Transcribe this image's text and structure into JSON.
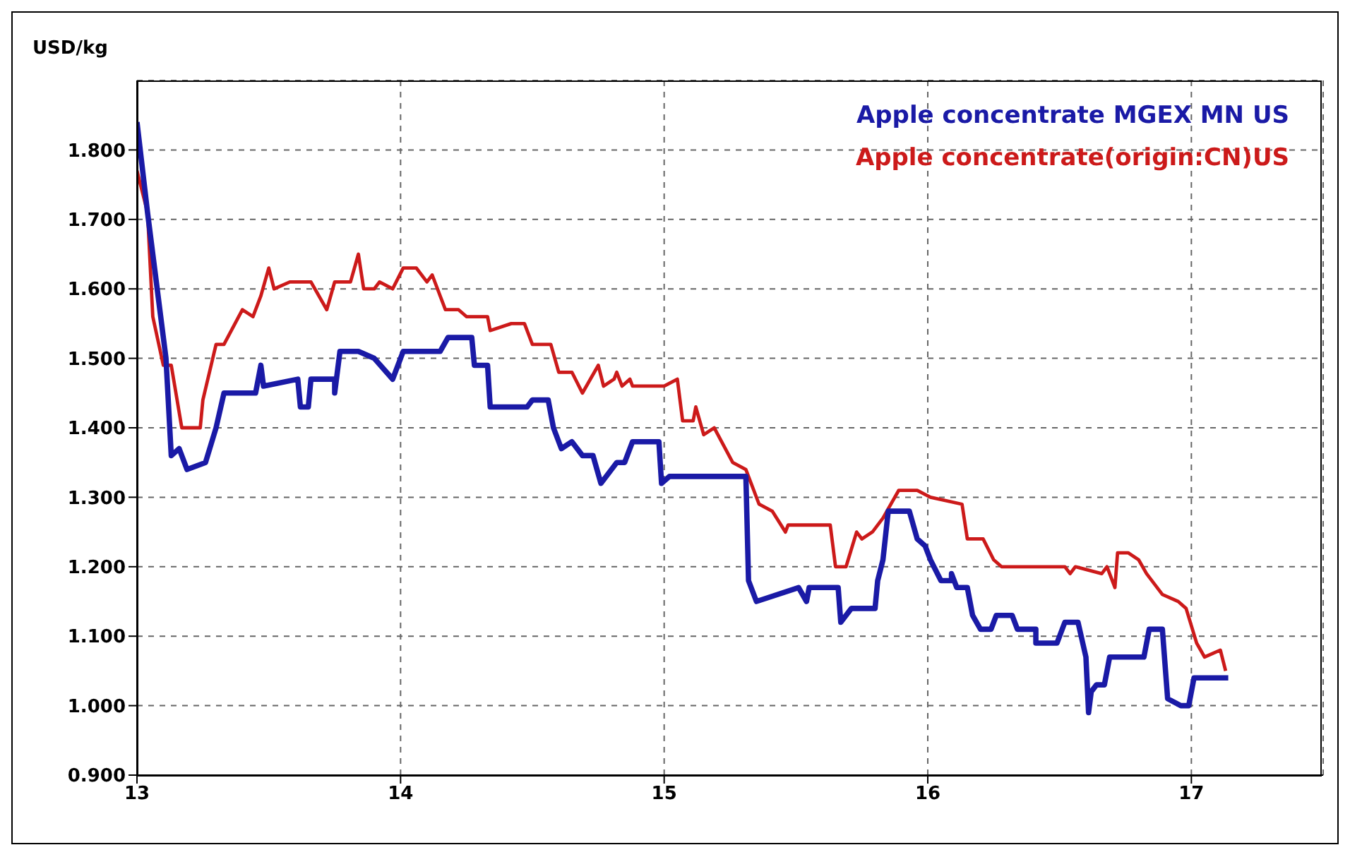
{
  "chart_data": {
    "type": "line",
    "ylabel": "USD/kg",
    "xlim": [
      13,
      17.5
    ],
    "xticks": [
      13,
      14,
      15,
      16,
      17
    ],
    "ylim": [
      0.9,
      1.9
    ],
    "yticks": [
      {
        "value": 0.9,
        "label": "0.900"
      },
      {
        "value": 1.0,
        "label": "1.000"
      },
      {
        "value": 1.1,
        "label": "1.100"
      },
      {
        "value": 1.2,
        "label": "1.200"
      },
      {
        "value": 1.3,
        "label": "1.300"
      },
      {
        "value": 1.4,
        "label": "1.400"
      },
      {
        "value": 1.5,
        "label": "1.500"
      },
      {
        "value": 1.6,
        "label": "1.600"
      },
      {
        "value": 1.7,
        "label": "1.700"
      },
      {
        "value": 1.8,
        "label": "1.800"
      }
    ],
    "grid": true,
    "legend": "top right",
    "marker": "none",
    "line_style": "solid",
    "series": [
      {
        "name": "Apple concentrate MGEX MN US",
        "color": "#1a1aa6",
        "x": [
          13.0,
          13.04,
          13.11,
          13.13,
          13.16,
          13.19,
          13.26,
          13.3,
          13.33,
          13.45,
          13.47,
          13.48,
          13.61,
          13.62,
          13.65,
          13.66,
          13.75,
          13.75,
          13.77,
          13.84,
          13.9,
          13.97,
          14.01,
          14.15,
          14.18,
          14.27,
          14.28,
          14.33,
          14.34,
          14.48,
          14.5,
          14.56,
          14.58,
          14.61,
          14.65,
          14.69,
          14.73,
          14.76,
          14.82,
          14.85,
          14.88,
          14.98,
          14.99,
          15.02,
          15.2,
          15.22,
          15.31,
          15.32,
          15.35,
          15.51,
          15.54,
          15.55,
          15.66,
          15.67,
          15.71,
          15.8,
          15.81,
          15.83,
          15.85,
          15.93,
          15.96,
          15.99,
          16.01,
          16.05,
          16.09,
          16.09,
          16.11,
          16.15,
          16.17,
          16.2,
          16.24,
          16.26,
          16.32,
          16.34,
          16.41,
          16.41,
          16.49,
          16.52,
          16.57,
          16.6,
          16.61,
          16.62,
          16.64,
          16.67,
          16.69,
          16.82,
          16.84,
          16.89,
          16.91,
          16.96,
          16.99,
          17.01,
          17.14
        ],
        "values": [
          1.84,
          1.71,
          1.5,
          1.36,
          1.37,
          1.34,
          1.35,
          1.4,
          1.45,
          1.45,
          1.49,
          1.46,
          1.47,
          1.43,
          1.43,
          1.47,
          1.47,
          1.45,
          1.51,
          1.51,
          1.5,
          1.47,
          1.51,
          1.51,
          1.53,
          1.53,
          1.49,
          1.49,
          1.43,
          1.43,
          1.44,
          1.44,
          1.4,
          1.37,
          1.38,
          1.36,
          1.36,
          1.32,
          1.35,
          1.35,
          1.38,
          1.38,
          1.32,
          1.33,
          1.33,
          1.33,
          1.33,
          1.18,
          1.15,
          1.17,
          1.15,
          1.17,
          1.17,
          1.12,
          1.14,
          1.14,
          1.18,
          1.21,
          1.28,
          1.28,
          1.24,
          1.23,
          1.21,
          1.18,
          1.18,
          1.19,
          1.17,
          1.17,
          1.13,
          1.11,
          1.11,
          1.13,
          1.13,
          1.11,
          1.11,
          1.09,
          1.09,
          1.12,
          1.12,
          1.07,
          0.99,
          1.02,
          1.03,
          1.03,
          1.07,
          1.07,
          1.11,
          1.11,
          1.01,
          1.0,
          1.0,
          1.04,
          1.04
        ]
      },
      {
        "name": "Apple concentrate(origin:CN)US",
        "color": "#cc1a1a",
        "x": [
          13.0,
          13.04,
          13.06,
          13.1,
          13.13,
          13.17,
          13.24,
          13.25,
          13.3,
          13.33,
          13.4,
          13.44,
          13.47,
          13.5,
          13.52,
          13.58,
          13.66,
          13.72,
          13.75,
          13.81,
          13.84,
          13.86,
          13.9,
          13.92,
          13.97,
          14.01,
          14.02,
          14.06,
          14.1,
          14.12,
          14.17,
          14.22,
          14.25,
          14.33,
          14.34,
          14.42,
          14.47,
          14.5,
          14.57,
          14.6,
          14.65,
          14.69,
          14.75,
          14.77,
          14.81,
          14.82,
          14.84,
          14.87,
          14.88,
          15.0,
          15.05,
          15.07,
          15.11,
          15.12,
          15.15,
          15.19,
          15.26,
          15.31,
          15.36,
          15.41,
          15.46,
          15.47,
          15.63,
          15.65,
          15.69,
          15.73,
          15.75,
          15.79,
          15.83,
          15.89,
          15.95,
          15.96,
          16.01,
          16.13,
          16.15,
          16.17,
          16.21,
          16.25,
          16.28,
          16.52,
          16.54,
          16.56,
          16.66,
          16.68,
          16.71,
          16.72,
          16.76,
          16.8,
          16.83,
          16.89,
          16.95,
          16.98,
          17.02,
          17.05,
          17.11,
          17.13
        ],
        "values": [
          1.77,
          1.71,
          1.56,
          1.49,
          1.49,
          1.4,
          1.4,
          1.44,
          1.52,
          1.52,
          1.57,
          1.56,
          1.59,
          1.63,
          1.6,
          1.61,
          1.61,
          1.57,
          1.61,
          1.61,
          1.65,
          1.6,
          1.6,
          1.61,
          1.6,
          1.63,
          1.63,
          1.63,
          1.61,
          1.62,
          1.57,
          1.57,
          1.56,
          1.56,
          1.54,
          1.55,
          1.55,
          1.52,
          1.52,
          1.48,
          1.48,
          1.45,
          1.49,
          1.46,
          1.47,
          1.48,
          1.46,
          1.47,
          1.46,
          1.46,
          1.47,
          1.41,
          1.41,
          1.43,
          1.39,
          1.4,
          1.35,
          1.34,
          1.29,
          1.28,
          1.25,
          1.26,
          1.26,
          1.2,
          1.2,
          1.25,
          1.24,
          1.25,
          1.27,
          1.31,
          1.31,
          1.31,
          1.3,
          1.29,
          1.24,
          1.24,
          1.24,
          1.21,
          1.2,
          1.2,
          1.19,
          1.2,
          1.19,
          1.2,
          1.17,
          1.22,
          1.22,
          1.21,
          1.19,
          1.16,
          1.15,
          1.14,
          1.09,
          1.07,
          1.08,
          1.05
        ]
      }
    ]
  }
}
